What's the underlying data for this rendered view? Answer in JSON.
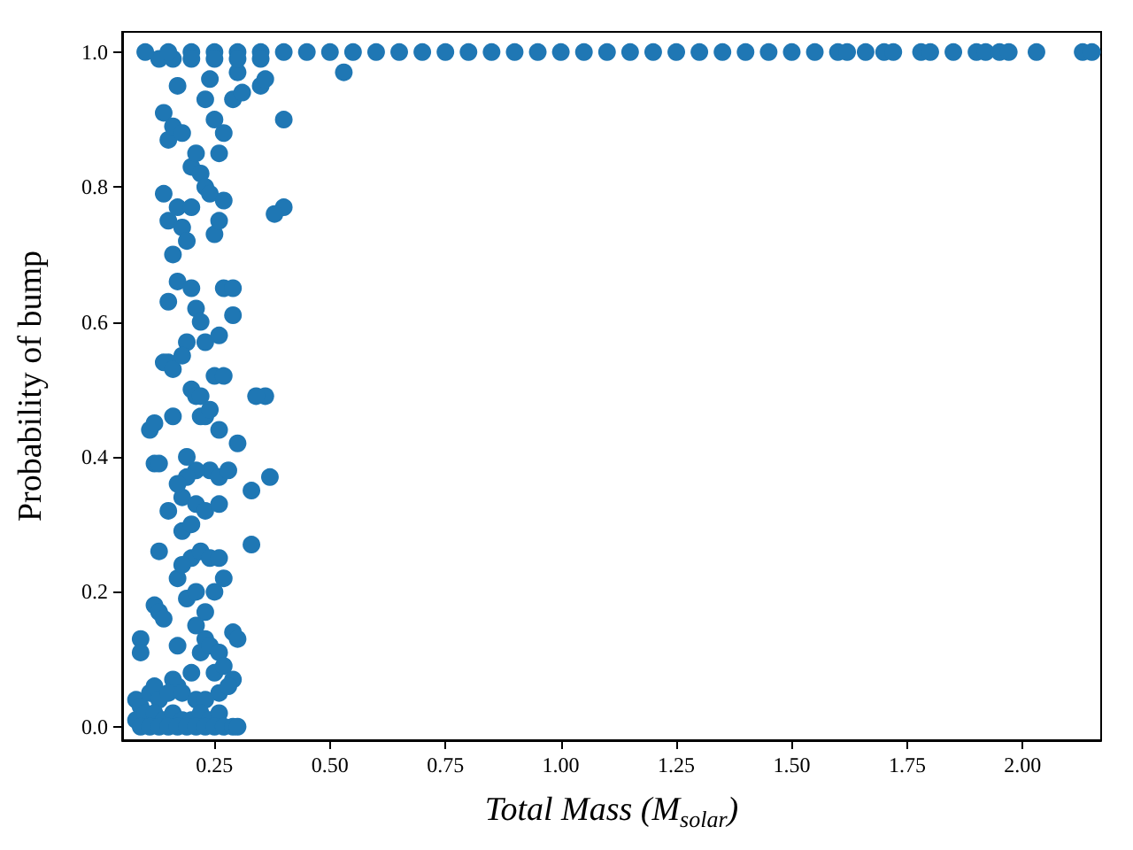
{
  "chart_data": {
    "type": "scatter",
    "xlabel": "Total Mass (M$_{solar}$)",
    "ylabel": "Probability of bump",
    "marker": "circle",
    "grid": false,
    "xlim": [
      0.05,
      2.17
    ],
    "xticks": [
      {
        "value": 0.25,
        "label": "0.25"
      },
      {
        "value": 0.5,
        "label": "0.50"
      },
      {
        "value": 0.75,
        "label": "0.75"
      },
      {
        "value": 1.0,
        "label": "1.00"
      },
      {
        "value": 1.25,
        "label": "1.25"
      },
      {
        "value": 1.5,
        "label": "1.50"
      },
      {
        "value": 1.75,
        "label": "1.75"
      },
      {
        "value": 2.0,
        "label": "2.00"
      }
    ],
    "ylim": [
      -0.02,
      1.03
    ],
    "yticks": [
      {
        "value": 0,
        "label": "0.0"
      },
      {
        "value": 0.2,
        "label": "0.2"
      },
      {
        "value": 0.4,
        "label": "0.4"
      },
      {
        "value": 0.6,
        "label": "0.6"
      },
      {
        "value": 0.8,
        "label": "0.8"
      },
      {
        "value": 1.0,
        "label": "1.0"
      }
    ],
    "series": [
      {
        "color": "#1f77b4",
        "x": [
          0.09,
          0.09,
          0.11,
          0.12,
          0.12,
          0.13,
          0.12,
          0.13,
          0.13,
          0.14,
          0.15,
          0.15,
          0.14,
          0.16,
          0.16,
          0.15,
          0.16,
          0.17,
          0.15,
          0.14,
          0.15,
          0.14,
          0.16,
          0.18,
          0.17,
          0.13,
          0.16,
          0.17,
          0.18,
          0.19,
          0.2,
          0.2,
          0.21,
          0.22,
          0.23,
          0.24,
          0.25,
          0.26,
          0.27,
          0.26,
          0.27,
          0.25,
          0.23,
          0.24,
          0.29,
          0.31,
          0.35,
          0.36,
          0.3,
          0.2,
          0.21,
          0.22,
          0.23,
          0.26,
          0.27,
          0.29,
          0.29,
          0.19,
          0.18,
          0.2,
          0.21,
          0.22,
          0.25,
          0.27,
          0.22,
          0.23,
          0.24,
          0.26,
          0.3,
          0.36,
          0.34,
          0.24,
          0.26,
          0.21,
          0.19,
          0.19,
          0.18,
          0.17,
          0.18,
          0.2,
          0.21,
          0.23,
          0.26,
          0.28,
          0.33,
          0.37,
          0.2,
          0.17,
          0.18,
          0.22,
          0.24,
          0.26,
          0.19,
          0.21,
          0.23,
          0.25,
          0.27,
          0.33,
          0.29,
          0.3,
          0.23,
          0.21,
          0.17,
          0.16,
          0.17,
          0.2,
          0.22,
          0.24,
          0.26,
          0.25,
          0.27,
          0.29,
          0.26,
          0.28,
          0.08,
          0.09,
          0.11,
          0.12,
          0.13,
          0.15,
          0.18,
          0.21,
          0.23,
          0.08,
          0.1,
          0.12,
          0.14,
          0.16,
          0.18,
          0.2,
          0.22,
          0.24,
          0.26,
          0.09,
          0.11,
          0.13,
          0.15,
          0.17,
          0.19,
          0.21,
          0.23,
          0.25,
          0.27,
          0.29,
          0.3,
          0.4,
          0.4,
          0.38,
          0.53,
          0.1,
          0.15,
          0.2,
          0.25,
          0.3,
          0.35,
          0.4,
          0.45,
          0.5,
          0.55,
          0.6,
          0.65,
          0.7,
          0.75,
          0.8,
          0.85,
          0.9,
          0.95,
          1.0,
          1.05,
          1.1,
          1.15,
          1.2,
          1.25,
          1.3,
          1.35,
          1.4,
          1.45,
          1.5,
          1.55,
          1.6,
          1.62,
          1.66,
          1.7,
          1.72,
          1.78,
          1.8,
          1.85,
          1.9,
          1.92,
          1.95,
          1.97,
          2.03,
          2.13,
          2.15,
          0.2,
          0.25,
          0.3,
          0.35
        ],
        "values": [
          0.13,
          0.11,
          0.44,
          0.45,
          0.39,
          0.39,
          0.18,
          0.17,
          0.26,
          0.16,
          0.32,
          0.54,
          0.54,
          0.53,
          0.46,
          0.63,
          0.7,
          0.66,
          0.75,
          0.79,
          0.87,
          0.91,
          0.89,
          0.88,
          0.95,
          0.99,
          0.99,
          0.77,
          0.74,
          0.72,
          0.77,
          0.83,
          0.85,
          0.82,
          0.8,
          0.79,
          0.73,
          0.75,
          0.78,
          0.85,
          0.88,
          0.9,
          0.93,
          0.96,
          0.93,
          0.94,
          0.95,
          0.96,
          0.97,
          0.65,
          0.62,
          0.6,
          0.57,
          0.58,
          0.65,
          0.65,
          0.61,
          0.57,
          0.55,
          0.5,
          0.49,
          0.49,
          0.52,
          0.52,
          0.46,
          0.46,
          0.47,
          0.44,
          0.42,
          0.49,
          0.49,
          0.38,
          0.37,
          0.38,
          0.37,
          0.4,
          0.34,
          0.36,
          0.29,
          0.3,
          0.33,
          0.32,
          0.33,
          0.38,
          0.35,
          0.37,
          0.25,
          0.22,
          0.24,
          0.26,
          0.25,
          0.25,
          0.19,
          0.2,
          0.17,
          0.2,
          0.22,
          0.27,
          0.14,
          0.13,
          0.13,
          0.15,
          0.12,
          0.07,
          0.06,
          0.08,
          0.11,
          0.12,
          0.11,
          0.08,
          0.09,
          0.07,
          0.05,
          0.06,
          0.04,
          0.03,
          0.05,
          0.06,
          0.04,
          0.05,
          0.05,
          0.04,
          0.04,
          0.01,
          0.02,
          0.02,
          0.01,
          0.02,
          0.01,
          0.01,
          0.02,
          0.01,
          0.02,
          0,
          0,
          0,
          0,
          0,
          0,
          0,
          0,
          0,
          0,
          0,
          0,
          0.9,
          0.77,
          0.76,
          0.97,
          1,
          1,
          1,
          1,
          1,
          1,
          1,
          1,
          1,
          1,
          1,
          1,
          1,
          1,
          1,
          1,
          1,
          1,
          1,
          1,
          1,
          1,
          1,
          1,
          1,
          1,
          1,
          1,
          1,
          1,
          1,
          1,
          1,
          1,
          1,
          1,
          1,
          1,
          1,
          1,
          1,
          1,
          1,
          1,
          1,
          0.99,
          0.99,
          0.99,
          0.99
        ]
      }
    ]
  }
}
